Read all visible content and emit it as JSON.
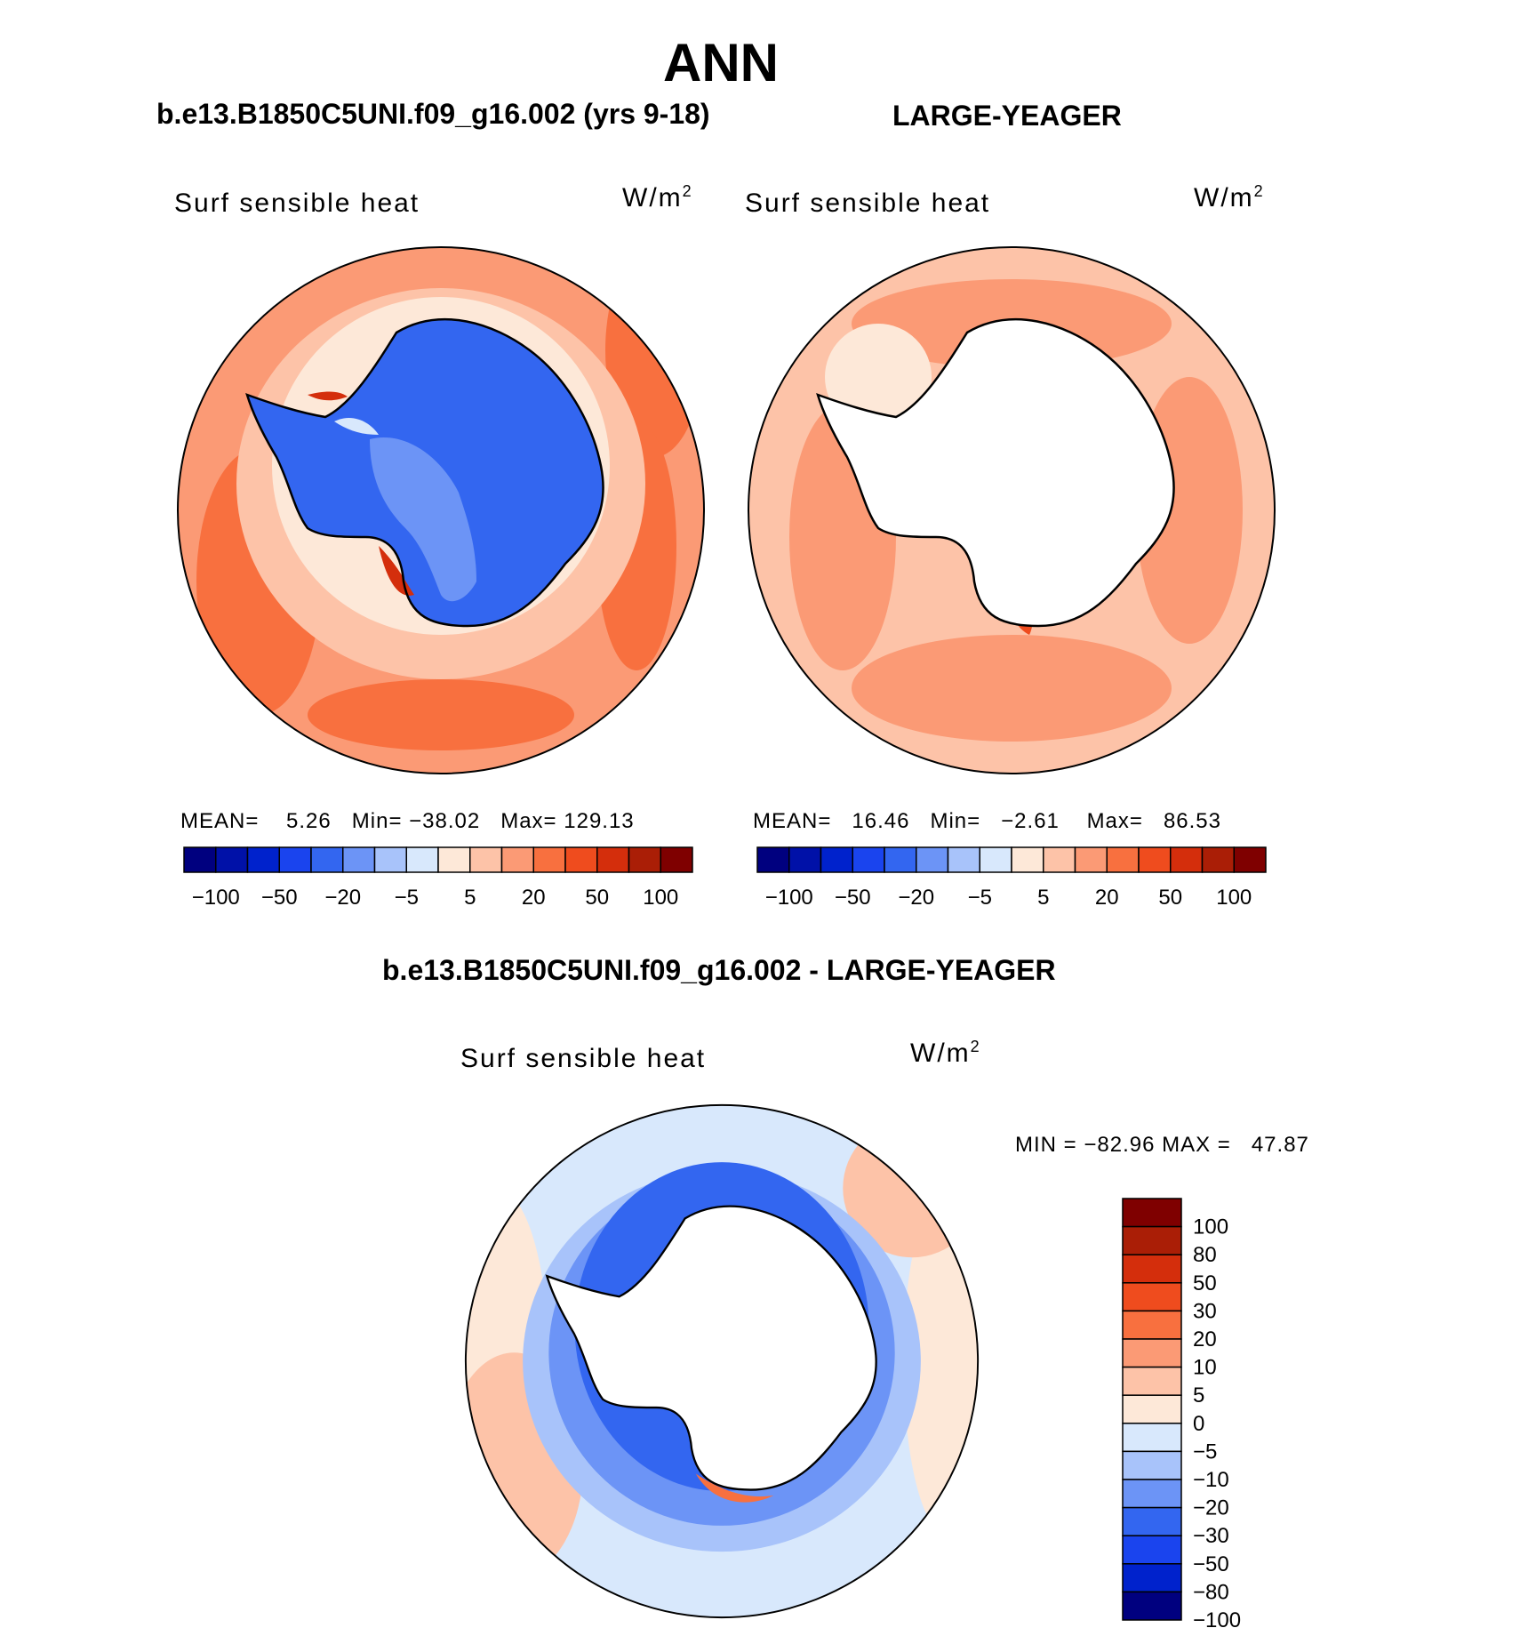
{
  "title": "ANN",
  "panels": [
    {
      "heading": "b.e13.B1850C5UNI.f09_g16.002 (yrs 9-18)",
      "variable": "Surf  sensible  heat",
      "units": "W/m",
      "units_sup": "2",
      "stats": {
        "mean_label": "MEAN=",
        "mean": "5.26",
        "min_label": "Min=",
        "min": "−38.02",
        "max_label": "Max=",
        "max": "129.13"
      }
    },
    {
      "heading": "LARGE-YEAGER",
      "variable": "Surf  sensible  heat",
      "units": "W/m",
      "units_sup": "2",
      "stats": {
        "mean_label": "MEAN=",
        "mean": "16.46",
        "min_label": "Min=",
        "min": "−2.61",
        "max_label": "Max=",
        "max": "86.53"
      }
    },
    {
      "heading": "b.e13.B1850C5UNI.f09_g16.002 - LARGE-YEAGER",
      "variable": "Surf  sensible  heat",
      "units": "W/m",
      "units_sup": "2",
      "stats": {
        "min_label": "MIN =",
        "min": "−82.96",
        "max_label": "MAX =",
        "max": "47.87"
      }
    }
  ],
  "horizontal_colorbar": {
    "colors": [
      "#00007f",
      "#0011a8",
      "#0022cc",
      "#1a44ee",
      "#3366f0",
      "#6c94f6",
      "#a8c3fa",
      "#d8e8fc",
      "#fde8d8",
      "#fdc3a8",
      "#fb9a75",
      "#f8703f",
      "#ef4c1e",
      "#d42e0c",
      "#aa1e06",
      "#7f0000"
    ],
    "tick_labels": [
      "−100",
      "−50",
      "−20",
      "−5",
      "5",
      "20",
      "50",
      "100"
    ]
  },
  "vertical_colorbar": {
    "colors": [
      "#00007f",
      "#0022cc",
      "#1a44ee",
      "#3366f0",
      "#6c94f6",
      "#a8c3fa",
      "#d8e8fc",
      "#fde8d8",
      "#fdc3a8",
      "#fb9a75",
      "#f8703f",
      "#ef4c1e",
      "#d42e0c",
      "#aa1e06",
      "#7f0000"
    ],
    "tick_labels": [
      "100",
      "80",
      "50",
      "30",
      "20",
      "10",
      "5",
      "0",
      "−5",
      "−10",
      "−20",
      "−30",
      "−50",
      "−80",
      "−100"
    ]
  }
}
